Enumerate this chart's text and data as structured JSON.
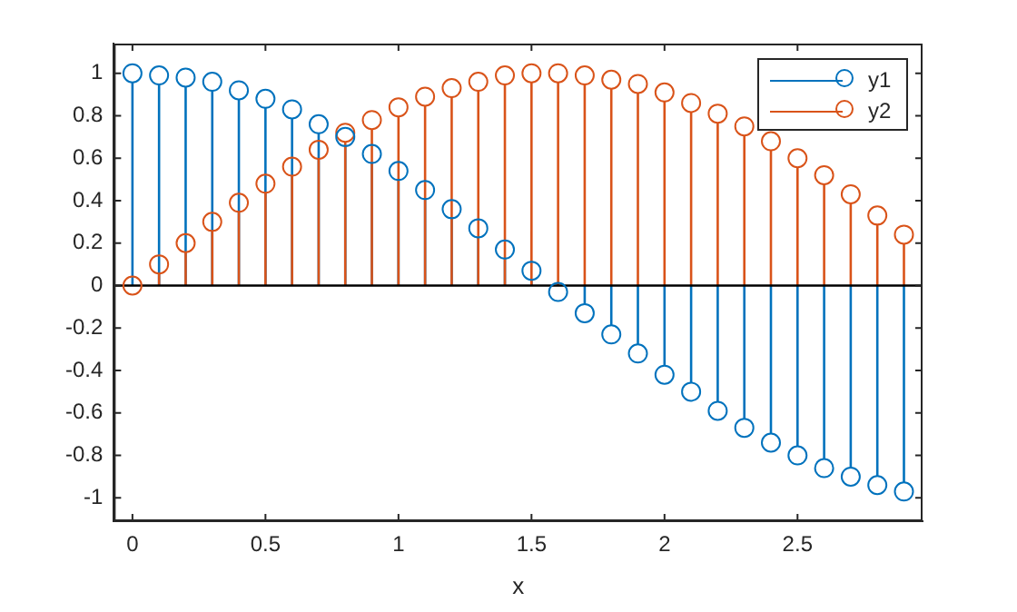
{
  "chart_data": {
    "type": "lollipop",
    "xlabel": "x",
    "x": [
      0,
      0.1,
      0.2,
      0.3,
      0.4,
      0.5,
      0.6,
      0.7,
      0.8,
      0.9,
      1,
      1.1,
      1.2,
      1.3,
      1.4,
      1.5,
      1.6,
      1.7,
      1.8,
      1.9,
      2,
      2.1,
      2.2,
      2.3,
      2.4,
      2.5,
      2.6,
      2.7,
      2.8,
      2.9
    ],
    "series": [
      {
        "name": "y1",
        "color": "#0072bd",
        "values": [
          1,
          0.99,
          0.98,
          0.96,
          0.92,
          0.88,
          0.83,
          0.76,
          0.7,
          0.62,
          0.54,
          0.45,
          0.36,
          0.27,
          0.17,
          0.07,
          -0.03,
          -0.13,
          -0.23,
          -0.32,
          -0.42,
          -0.5,
          -0.59,
          -0.67,
          -0.74,
          -0.8,
          -0.86,
          -0.9,
          -0.94,
          -0.97
        ]
      },
      {
        "name": "y2",
        "color": "#d95319",
        "values": [
          0,
          0.1,
          0.2,
          0.3,
          0.39,
          0.48,
          0.56,
          0.64,
          0.72,
          0.78,
          0.84,
          0.89,
          0.93,
          0.96,
          0.99,
          1,
          1,
          0.99,
          0.97,
          0.95,
          0.91,
          0.86,
          0.81,
          0.75,
          0.68,
          0.6,
          0.52,
          0.43,
          0.33,
          0.24
        ]
      }
    ],
    "xlim": [
      -0.07,
      2.97
    ],
    "xticks": [
      0,
      0.5,
      1,
      1.5,
      2,
      2.5
    ],
    "ylim": [
      -1.11,
      1.14
    ],
    "yticks": [
      -1,
      -0.8,
      -0.6,
      -0.4,
      -0.2,
      0,
      0.2,
      0.4,
      0.6,
      0.8,
      1
    ],
    "ref_lines": [
      {
        "axis": "y",
        "value": 0,
        "color": "#000000"
      }
    ],
    "marker": "circle",
    "legend": "top right",
    "grid": false
  }
}
